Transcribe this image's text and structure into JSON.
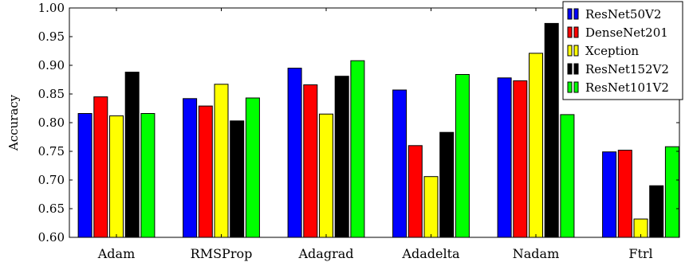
{
  "chart_data": {
    "type": "bar",
    "title": "",
    "xlabel": "",
    "ylabel": "Accuracy",
    "ylim": [
      0.6,
      1.0
    ],
    "yticks": [
      "0.60",
      "0.65",
      "0.70",
      "0.75",
      "0.80",
      "0.85",
      "0.90",
      "0.95",
      "1.00"
    ],
    "grid": false,
    "legend_position": "top-right",
    "categories": [
      "Adam",
      "RMSProp",
      "Adagrad",
      "Adadelta",
      "Nadam",
      "Ftrl"
    ],
    "series": [
      {
        "name": "ResNet50V2",
        "color": "#0000ff",
        "values": [
          0.816,
          0.842,
          0.895,
          0.857,
          0.878,
          0.749
        ]
      },
      {
        "name": "DenseNet201",
        "color": "#ff0000",
        "values": [
          0.845,
          0.829,
          0.866,
          0.76,
          0.873,
          0.752
        ]
      },
      {
        "name": "Xception",
        "color": "#ffff00",
        "values": [
          0.812,
          0.867,
          0.815,
          0.706,
          0.921,
          0.632
        ]
      },
      {
        "name": "ResNet152V2",
        "color": "#000000",
        "values": [
          0.888,
          0.803,
          0.881,
          0.783,
          0.973,
          0.69
        ]
      },
      {
        "name": "ResNet101V2",
        "color": "#00ff00",
        "values": [
          0.816,
          0.843,
          0.908,
          0.884,
          0.814,
          0.758
        ]
      }
    ]
  }
}
